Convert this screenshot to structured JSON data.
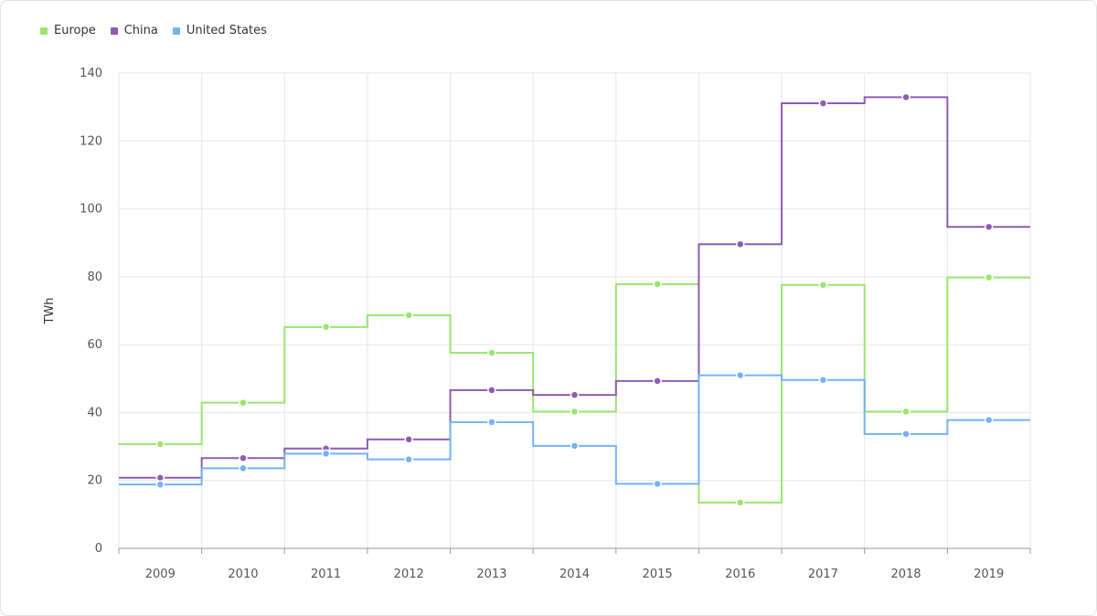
{
  "chart_data": {
    "type": "line",
    "subtype": "step",
    "categories": [
      "2009",
      "2010",
      "2011",
      "2012",
      "2013",
      "2014",
      "2015",
      "2016",
      "2017",
      "2018",
      "2019"
    ],
    "ylabel": "TWh",
    "xlabel": "",
    "ylim": [
      0,
      140
    ],
    "yticks": [
      0,
      20,
      40,
      60,
      80,
      100,
      120,
      140
    ],
    "grid": true,
    "legend_position": "top-left",
    "series": [
      {
        "name": "Europe",
        "color": "#9be56f",
        "values": [
          30.7,
          42.9,
          65.2,
          68.7,
          57.6,
          40.3,
          77.8,
          13.5,
          77.6,
          40.3,
          79.8
        ]
      },
      {
        "name": "China",
        "color": "#8e5cb4",
        "values": [
          20.8,
          26.6,
          29.4,
          32.1,
          46.6,
          45.2,
          49.3,
          89.6,
          131.1,
          132.9,
          94.7
        ]
      },
      {
        "name": "United States",
        "color": "#72b3f5",
        "values": [
          18.8,
          23.6,
          27.9,
          26.2,
          37.2,
          30.2,
          19.0,
          51.0,
          49.6,
          33.7,
          37.8
        ]
      }
    ]
  }
}
